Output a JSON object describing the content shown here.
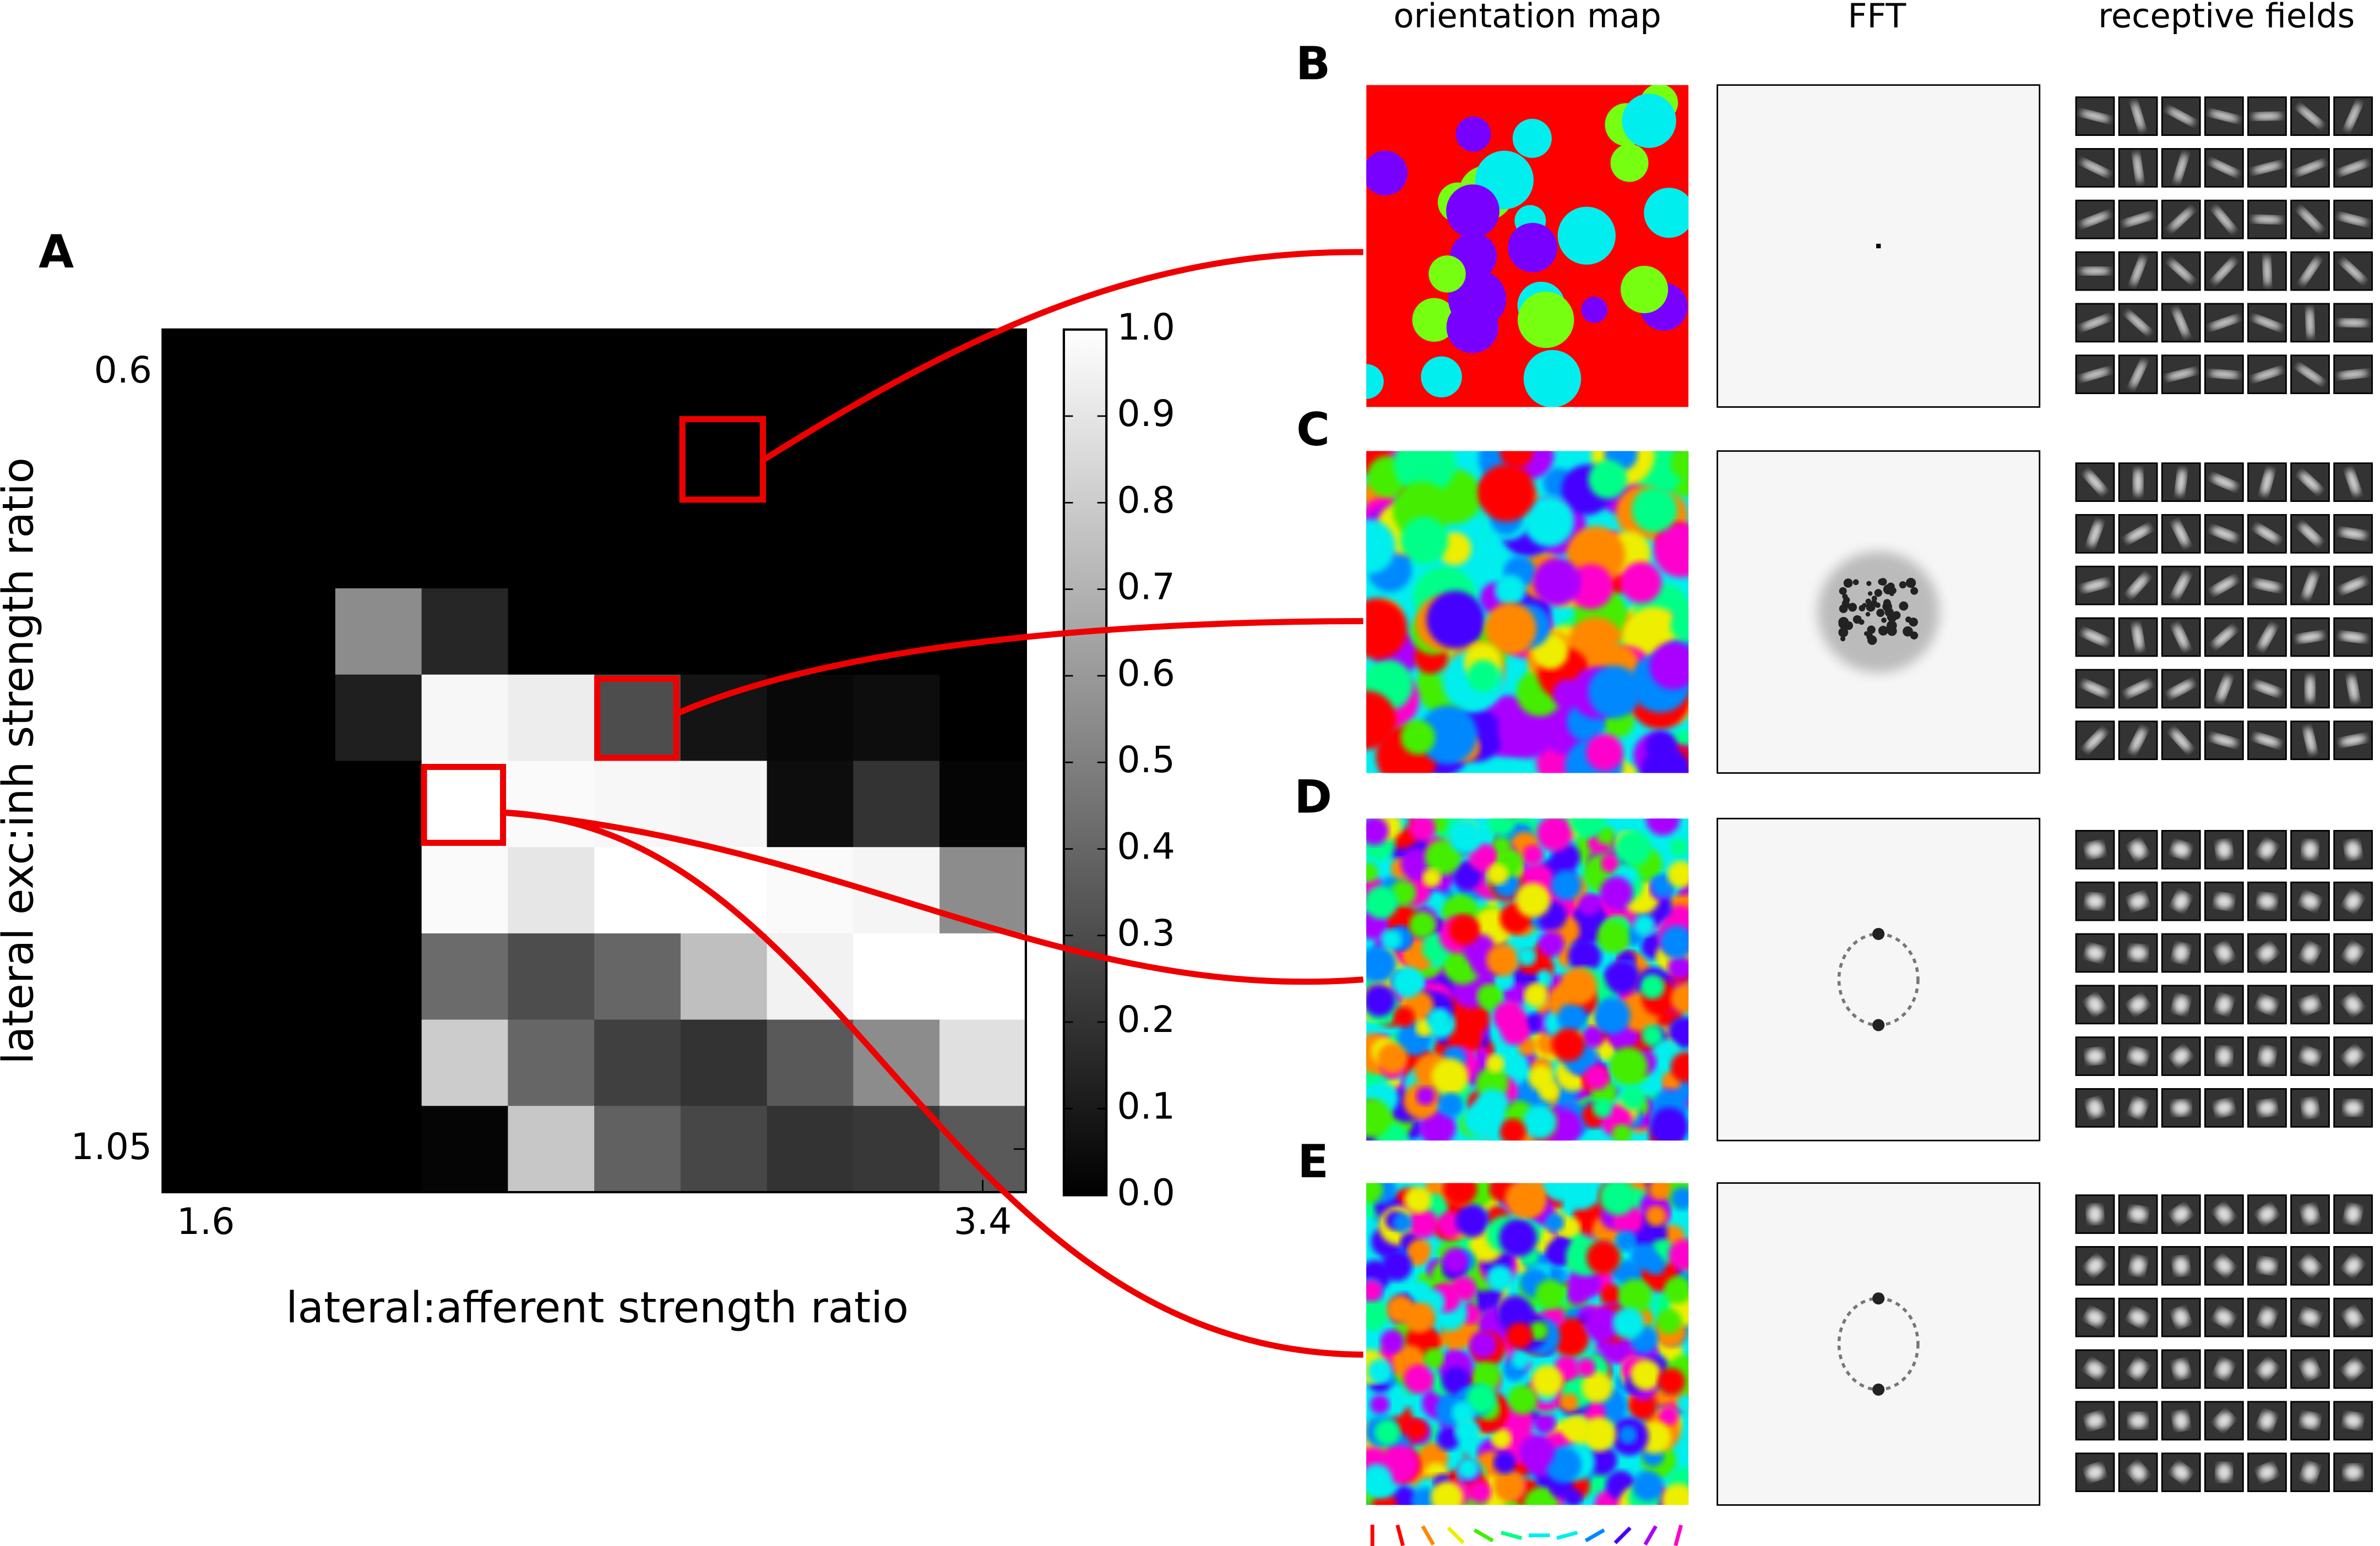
{
  "chart_data": {
    "type": "heatmap",
    "panel_label": "A",
    "x_label": "lateral:afferent strength ratio",
    "y_label": "lateral exc:inh strength ratio",
    "xlim": [
      1.5,
      3.5
    ],
    "xticks": [
      1.6,
      3.4
    ],
    "ylim": [
      1.075,
      0.575
    ],
    "yticks": [
      0.6,
      1.05
    ],
    "values": [
      [
        0,
        0,
        0,
        0,
        0,
        0,
        0,
        0,
        0,
        0
      ],
      [
        0,
        0,
        0,
        0,
        0,
        0,
        0,
        0,
        0,
        0
      ],
      [
        0,
        0,
        0,
        0,
        0,
        0,
        0,
        0,
        0,
        0
      ],
      [
        0,
        0,
        0.55,
        0.15,
        0,
        0,
        0,
        0,
        0,
        0
      ],
      [
        0,
        0,
        0.12,
        0.97,
        0.93,
        0.3,
        0.08,
        0.03,
        0.05,
        0
      ],
      [
        0,
        0,
        0,
        1.0,
        0.98,
        0.97,
        0.96,
        0.05,
        0.2,
        0.02
      ],
      [
        0,
        0,
        0,
        0.98,
        0.9,
        1.0,
        1.0,
        0.98,
        0.96,
        0.55
      ],
      [
        0,
        0,
        0,
        0.42,
        0.3,
        0.4,
        0.75,
        0.95,
        1.0,
        1.0
      ],
      [
        0,
        0,
        0,
        0.8,
        0.4,
        0.25,
        0.2,
        0.35,
        0.55,
        0.88
      ],
      [
        0,
        0,
        0,
        0.02,
        0.78,
        0.38,
        0.28,
        0.2,
        0.22,
        0.35
      ]
    ],
    "colormap": "gray",
    "clim": [
      0,
      1
    ],
    "cticks": [
      {
        "value": 0,
        "label": "0.0"
      },
      0.1,
      0.2,
      0.3,
      0.4,
      0.5,
      0.6,
      0.7,
      0.8,
      0.9,
      {
        "value": 1,
        "label": "1.0"
      }
    ]
  },
  "panels": {
    "columns": [
      "orientation map",
      "FFT",
      "receptive fields"
    ],
    "labels": [
      "B",
      "C",
      "D",
      "E"
    ]
  }
}
